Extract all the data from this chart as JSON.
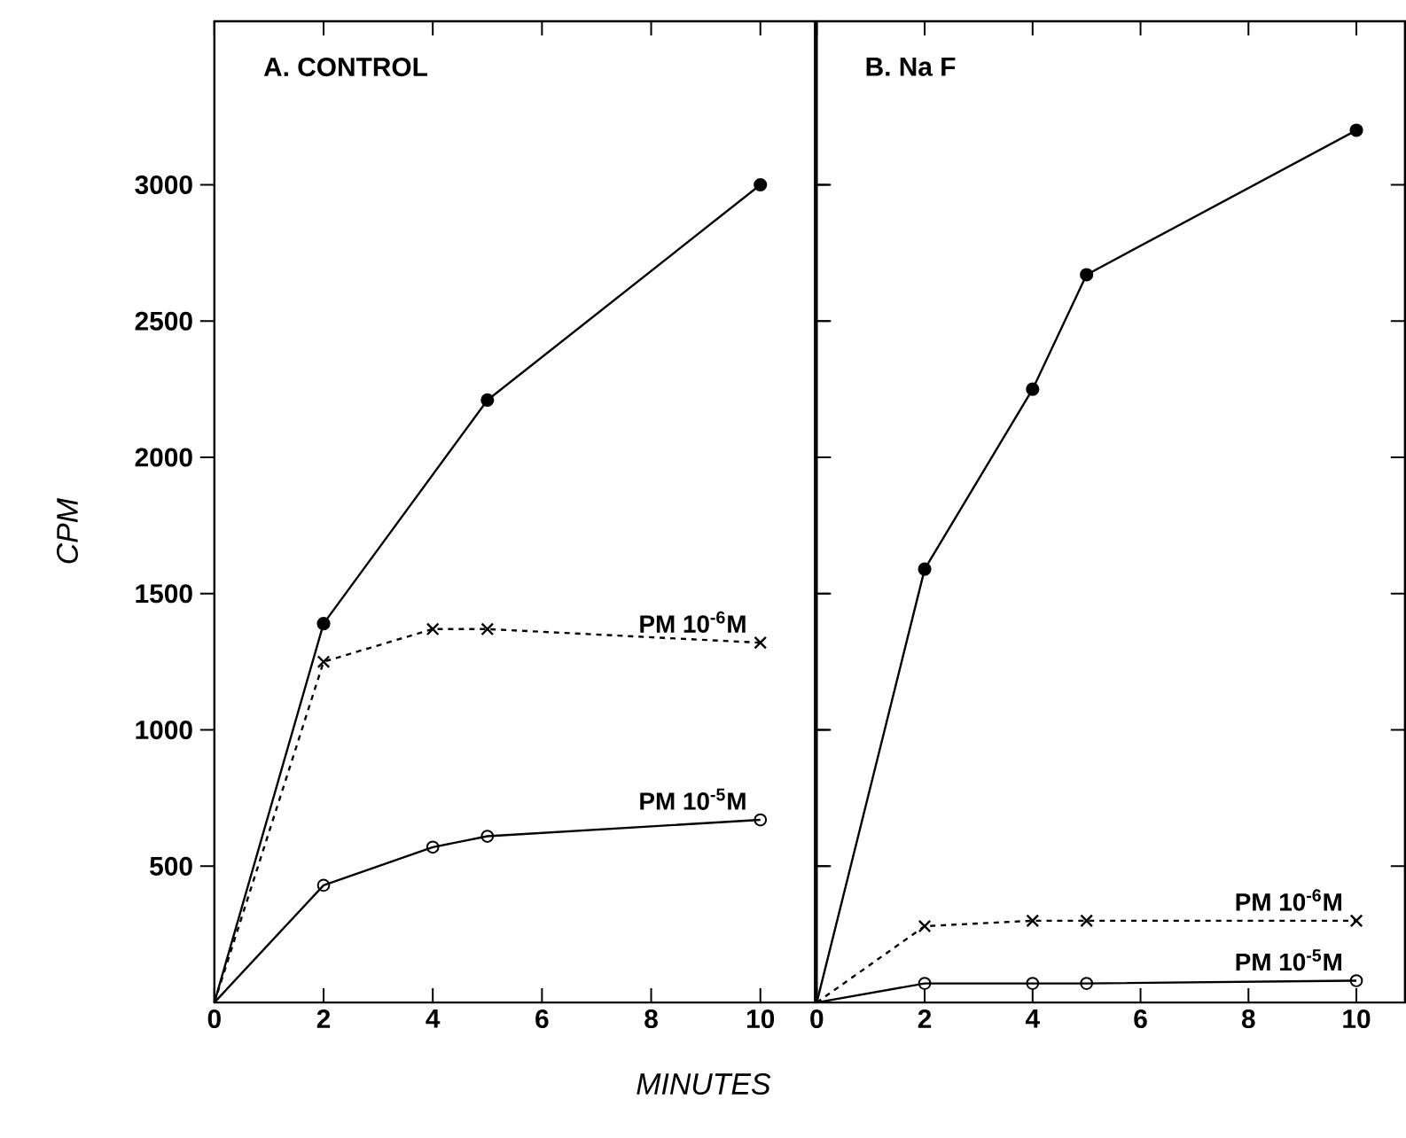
{
  "chart_data": [
    {
      "type": "line",
      "title": "A.   CONTROL",
      "xlabel": "MINUTES",
      "ylabel": "CPM",
      "xlim": [
        0,
        11
      ],
      "xticks": [
        0,
        2,
        4,
        6,
        8,
        10
      ],
      "ylim": [
        0,
        3600
      ],
      "yticks": [
        500,
        1000,
        1500,
        2000,
        2500,
        3000
      ],
      "grid": false,
      "legend": false,
      "series": [
        {
          "color": "#000000",
          "marker": "circle",
          "line_style": "solid",
          "x": [
            0,
            2,
            5,
            10
          ],
          "values": [
            0,
            1390,
            2210,
            3000
          ]
        },
        {
          "name": "PM 10$^{-6}$M",
          "color": "#000000",
          "marker": "cross",
          "line_style": "dashed",
          "x": [
            0,
            2,
            4,
            5,
            10
          ],
          "values": [
            0,
            1250,
            1370,
            1370,
            1320
          ]
        },
        {
          "name": "PM 10$^{-5}$M",
          "color": "#000000",
          "marker": "circle",
          "line_style": "solid",
          "x": [
            0,
            2,
            4,
            5,
            10
          ],
          "values": [
            0,
            430,
            570,
            610,
            670
          ]
        }
      ]
    },
    {
      "type": "line",
      "title": "B.   Na F",
      "xlim": [
        0,
        10.9
      ],
      "xticks": [
        0,
        2,
        4,
        6,
        8,
        10
      ],
      "ylim": [
        0,
        3600
      ],
      "yticks": [
        500,
        1000,
        1500,
        2000,
        2500,
        3000
      ],
      "tick_labels": "x",
      "grid": false,
      "legend": false,
      "series": [
        {
          "color": "#000000",
          "marker": "circle",
          "line_style": "solid",
          "x": [
            0,
            2,
            4,
            5,
            10
          ],
          "values": [
            0,
            1590,
            2250,
            2670,
            3200
          ]
        },
        {
          "name": "PM 10$^{-6}$M",
          "color": "#000000",
          "marker": "cross",
          "line_style": "dashed",
          "x": [
            0,
            2,
            4,
            5,
            10
          ],
          "values": [
            0,
            280,
            300,
            300,
            300
          ]
        },
        {
          "name": "PM 10$^{-5}$M",
          "color": "#000000",
          "marker": "circle",
          "line_style": "solid",
          "x": [
            0,
            2,
            4,
            5,
            10
          ],
          "values": [
            0,
            70,
            70,
            70,
            80
          ]
        }
      ]
    }
  ]
}
